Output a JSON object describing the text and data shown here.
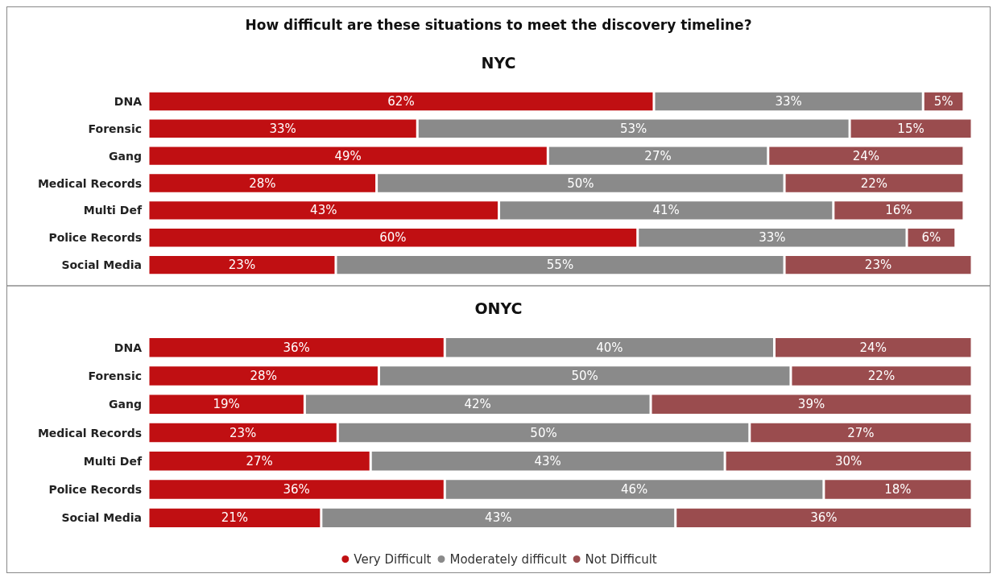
{
  "chart_data": [
    {
      "type": "bar",
      "title": "How difficult are these situations to meet the discovery timeline?",
      "subtitle": "NYC",
      "orientation": "horizontal",
      "stacked": true,
      "legend": false,
      "categories": [
        "DNA",
        "Forensic",
        "Gang",
        "Medical Records",
        "Multi Def",
        "Police Records",
        "Social Media"
      ],
      "series": [
        {
          "color": "#c00f12",
          "values": [
            62,
            33,
            49,
            28,
            43,
            60,
            23
          ],
          "value_labels": [
            "62%",
            "33%",
            "49%",
            "28%",
            "43%",
            "60%",
            "23%"
          ]
        },
        {
          "color": "#8a8a8a",
          "values": [
            33,
            53,
            27,
            50,
            41,
            33,
            55
          ],
          "value_labels": [
            "33%",
            "53%",
            "27%",
            "50%",
            "41%",
            "33%",
            "55%"
          ]
        },
        {
          "color": "#9a4c4e",
          "values": [
            5,
            15,
            24,
            22,
            16,
            6,
            23
          ],
          "value_labels": [
            "5%",
            "15%",
            "24%",
            "22%",
            "16%",
            "6%",
            "23%"
          ]
        }
      ]
    },
    {
      "type": "bar",
      "title": "ONYC",
      "orientation": "horizontal",
      "stacked": true,
      "legend": "bottom",
      "categories": [
        "DNA",
        "Forensic",
        "Gang",
        "Medical Records",
        "Multi Def",
        "Police Records",
        "Social Media"
      ],
      "series": [
        {
          "name": "Very Difficult",
          "color": "#c00f12",
          "values": [
            36,
            28,
            19,
            23,
            27,
            36,
            21
          ],
          "value_labels": [
            "36%",
            "28%",
            "19%",
            "23%",
            "27%",
            "36%",
            "21%"
          ]
        },
        {
          "name": "Moderately difficult",
          "color": "#8a8a8a",
          "values": [
            40,
            50,
            42,
            50,
            43,
            46,
            43
          ],
          "value_labels": [
            "40%",
            "50%",
            "42%",
            "50%",
            "43%",
            "46%",
            "43%"
          ]
        },
        {
          "name": "Not Difficult",
          "color": "#9a4c4e",
          "values": [
            24,
            22,
            39,
            27,
            30,
            18,
            36
          ],
          "value_labels": [
            "24%",
            "22%",
            "39%",
            "27%",
            "30%",
            "18%",
            "36%"
          ]
        }
      ]
    }
  ]
}
